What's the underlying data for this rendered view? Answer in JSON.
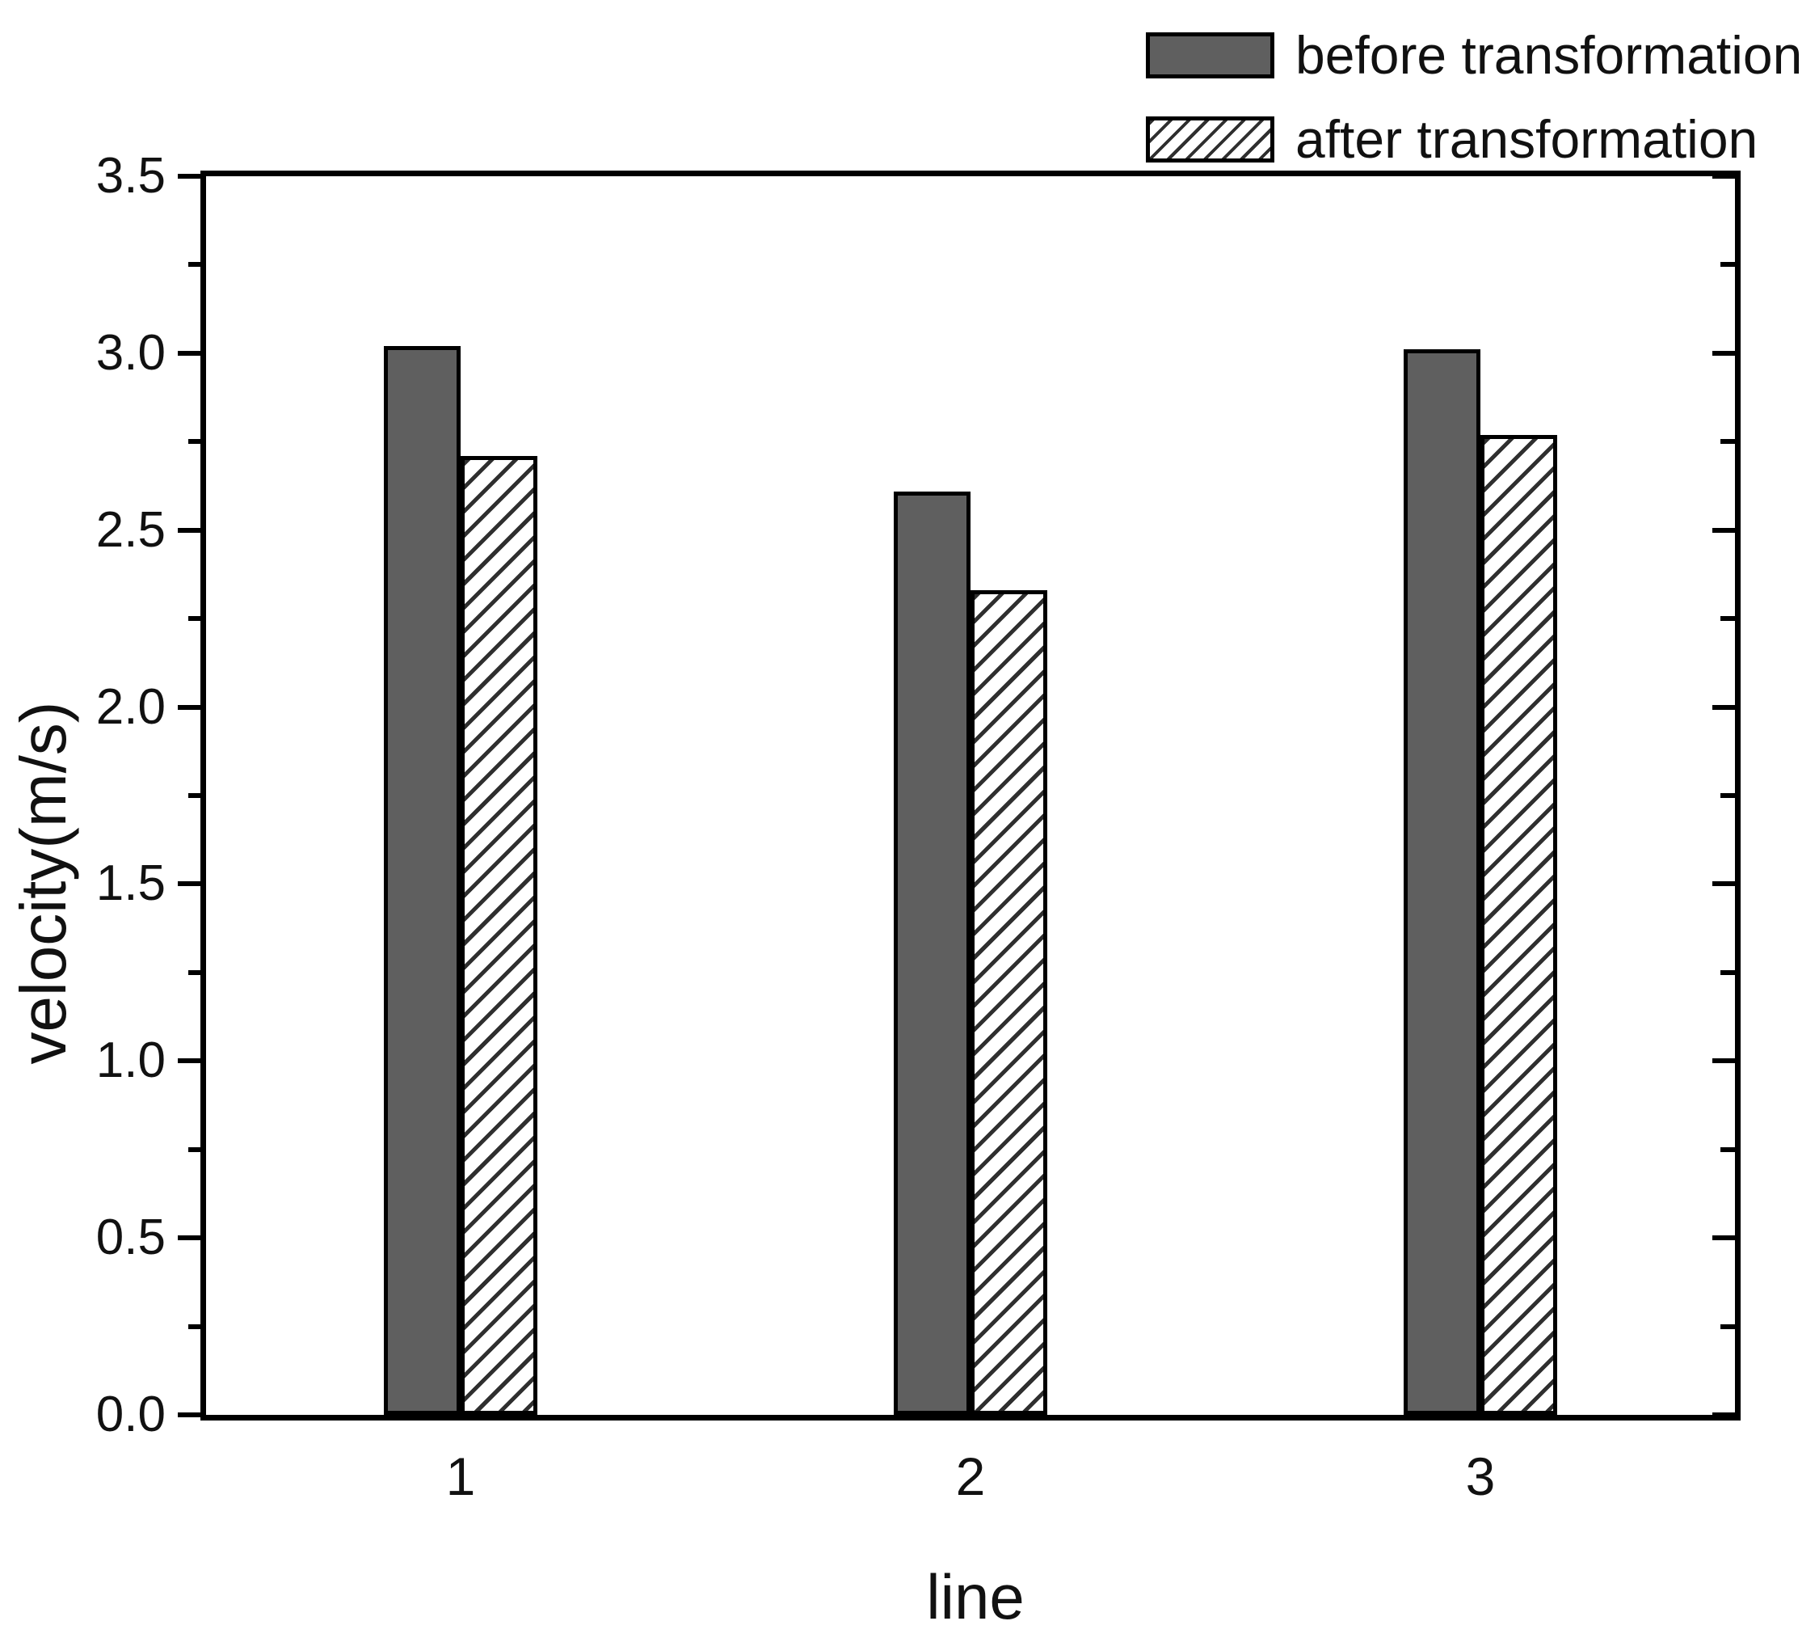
{
  "figure": {
    "background": "#ffffff"
  },
  "chart_data": {
    "type": "bar",
    "title": "",
    "xlabel": "line",
    "ylabel": "velocity(m/s)",
    "categories": [
      "1",
      "2",
      "3"
    ],
    "series": [
      {
        "name": "before transformation",
        "values": [
          3.02,
          2.61,
          3.01
        ],
        "fill": "solid",
        "color": "#5f5f5f"
      },
      {
        "name": "after transformation",
        "values": [
          2.71,
          2.33,
          2.77
        ],
        "fill": "forward-diagonal-hatch",
        "color": "#ffffff",
        "hatch_color": "#2f2f2f"
      }
    ],
    "ylim": [
      0.0,
      3.5
    ],
    "yticks": [
      "0.0",
      "0.5",
      "1.0",
      "1.5",
      "2.0",
      "2.5",
      "3.0",
      "3.5"
    ],
    "ytick_values": [
      0,
      0.5,
      1,
      1.5,
      2,
      2.5,
      3,
      3.5
    ],
    "yminor_values": [
      0.25,
      0.75,
      1.25,
      1.75,
      2.25,
      2.75,
      3.25
    ],
    "legend": {
      "position": "top-right",
      "items": [
        "before transformation",
        "after transformation"
      ]
    },
    "grid": false,
    "axis_color": "#000000",
    "text_color": "#111111"
  }
}
